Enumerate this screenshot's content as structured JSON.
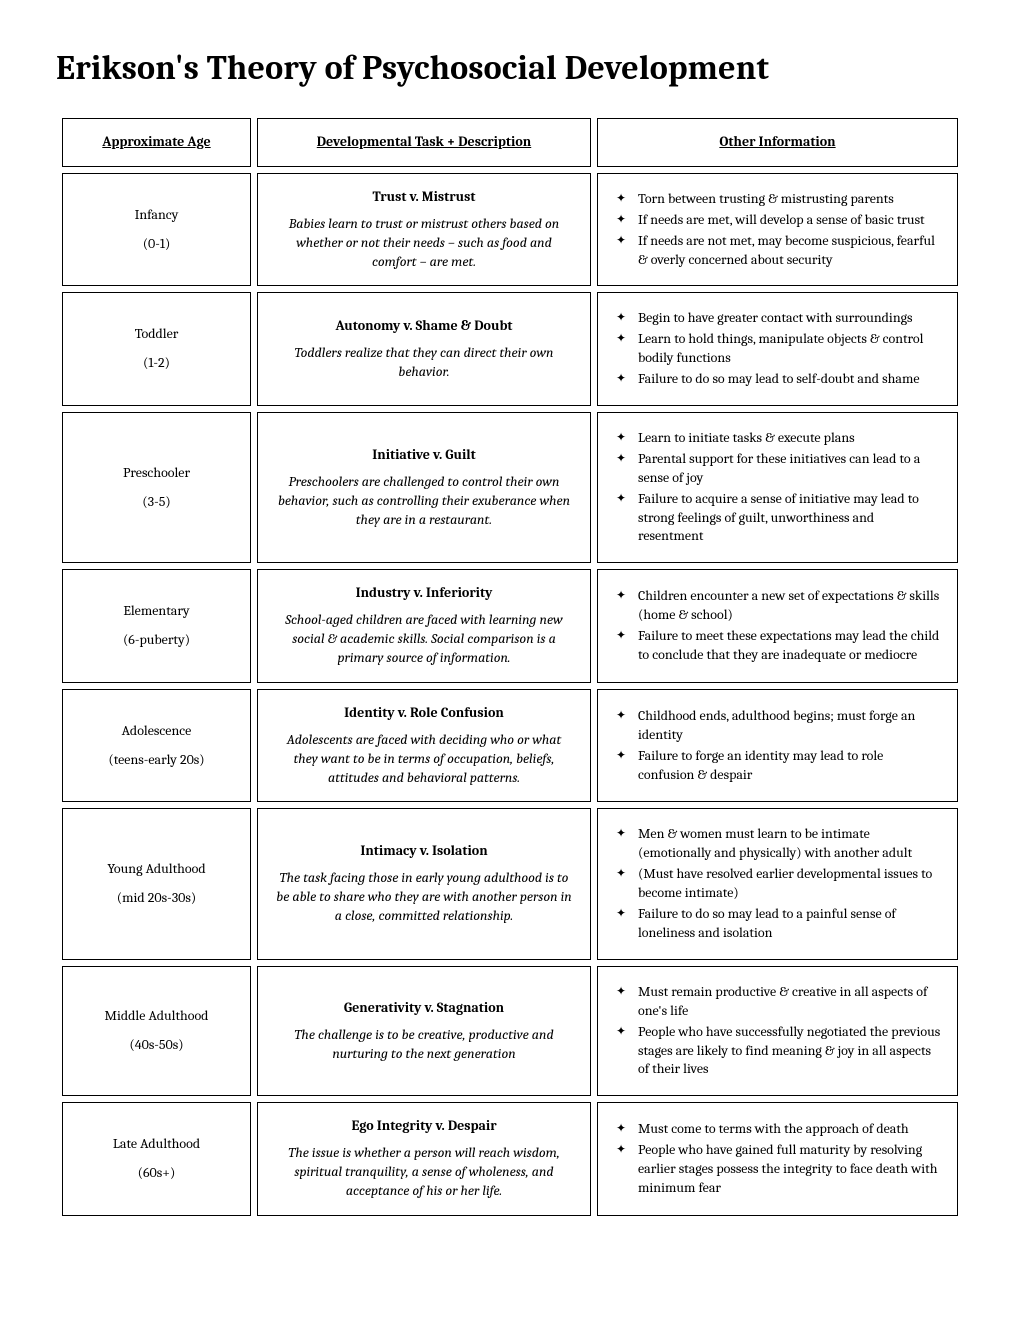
{
  "title": "Erikson's Theory of Psychosocial Development",
  "headers": {
    "age": "Approximate Age",
    "task": "Developmental Task + Description",
    "other": "Other Information"
  },
  "stages": [
    {
      "age_label": "Infancy",
      "age_range": "(0-1)",
      "task_title": "Trust v. Mistrust",
      "task_desc": "Babies learn to trust or mistrust others based on whether or not their needs – such as food and comfort – are met.",
      "bullets": [
        "Torn between trusting & mistrusting parents",
        "If needs are met, will develop a sense of basic trust",
        "If needs are not met, may become suspicious, fearful & overly concerned about security"
      ]
    },
    {
      "age_label": "Toddler",
      "age_range": "(1-2)",
      "task_title": "Autonomy v. Shame & Doubt",
      "task_desc": "Toddlers realize that they can direct their own behavior.",
      "bullets": [
        "Begin to have greater contact with surroundings",
        "Learn to hold things, manipulate objects & control bodily functions",
        "Failure to do so may lead to self-doubt and shame"
      ]
    },
    {
      "age_label": "Preschooler",
      "age_range": "(3-5)",
      "task_title": "Initiative v. Guilt",
      "task_desc": "Preschoolers are challenged to control their own behavior, such as controlling their exuberance when they are in a restaurant.",
      "bullets": [
        "Learn to initiate tasks & execute plans",
        "Parental support for these initiatives can lead to a sense of joy",
        "Failure to acquire a sense of initiative may lead to strong feelings of guilt, unworthiness and resentment"
      ]
    },
    {
      "age_label": "Elementary",
      "age_range": "(6-puberty)",
      "task_title": "Industry v. Inferiority",
      "task_desc": "School-aged children are faced with learning new social & academic skills. Social comparison is a primary source of information.",
      "bullets": [
        "Children encounter a new set of expectations & skills (home & school)",
        "Failure to meet these expectations may lead the child to conclude that they are inadequate or mediocre"
      ]
    },
    {
      "age_label": "Adolescence",
      "age_range": "(teens-early 20s)",
      "task_title": "Identity v. Role Confusion",
      "task_desc": "Adolescents are faced with deciding who or what they want to be in terms of occupation, beliefs, attitudes and behavioral patterns.",
      "bullets": [
        "Childhood ends, adulthood begins; must forge an identity",
        "Failure to forge an identity may lead to role confusion & despair"
      ]
    },
    {
      "age_label": "Young Adulthood",
      "age_range": "(mid 20s-30s)",
      "task_title": "Intimacy v. Isolation",
      "task_desc": "The task facing those in early young adulthood is to be able to share who they are with another person in a close, committed relationship.",
      "bullets": [
        "Men & women must learn to be intimate (emotionally and physically) with another adult",
        "(Must have resolved earlier developmental issues to become intimate)",
        "Failure to do so may lead to a painful sense of loneliness and isolation"
      ]
    },
    {
      "age_label": "Middle Adulthood",
      "age_range": "(40s-50s)",
      "task_title": "Generativity v. Stagnation",
      "task_desc": "The challenge is to be creative, productive and nurturing to the next generation",
      "bullets": [
        "Must remain productive & creative in all aspects of one's life",
        "People who have successfully negotiated the previous stages are likely to find meaning & joy in all aspects  of their lives"
      ]
    },
    {
      "age_label": "Late Adulthood",
      "age_range": "(60s+)",
      "task_title": "Ego Integrity v. Despair",
      "task_desc": "The issue is whether a person will reach wisdom, spiritual tranquility, a sense of wholeness, and acceptance of his or her life.",
      "bullets": [
        "Must come to terms with the approach of death",
        "People who have gained full maturity by resolving earlier stages possess the integrity to face death with  minimum fear"
      ]
    }
  ]
}
